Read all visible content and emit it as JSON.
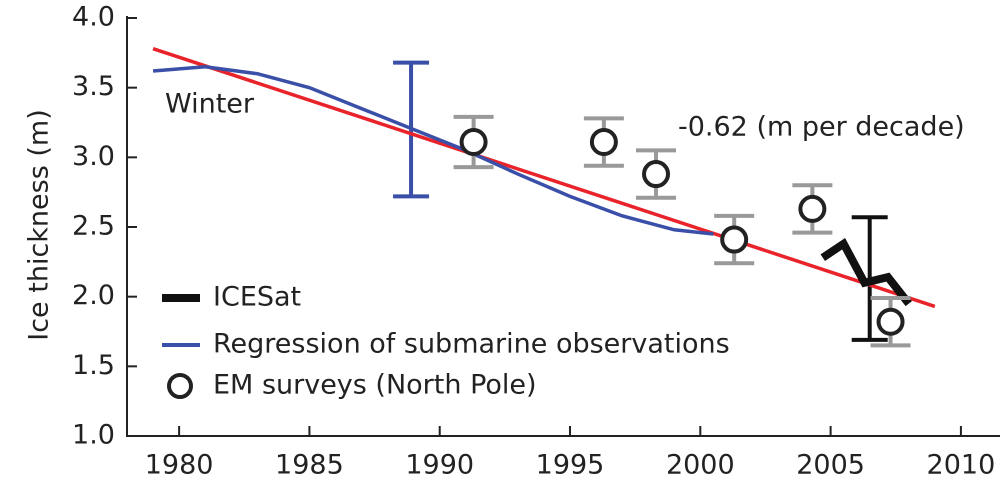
{
  "chart_data": {
    "type": "line",
    "ylabel": "Ice thickness (m)",
    "xlim": [
      1978,
      2011.5
    ],
    "xticks": [
      1980,
      1985,
      1990,
      1995,
      2000,
      2005,
      2010
    ],
    "ylim": [
      1.0,
      4.0
    ],
    "yticks": [
      {
        "value": 1,
        "label": "1.0"
      },
      1.5,
      {
        "value": 2,
        "label": "2.0"
      },
      2.5,
      {
        "value": 3,
        "label": "3.0"
      },
      3.5,
      {
        "value": 4,
        "label": "4.0"
      }
    ],
    "series": [
      {
        "name": "ICESat",
        "color": "#111111",
        "style": "line",
        "x": [
          2004.7,
          2005.5,
          2006.3,
          2007.2,
          2008.0
        ],
        "values": [
          2.28,
          2.38,
          2.1,
          2.14,
          1.95
        ]
      },
      {
        "name": "Regression of submarine observations",
        "color": "#3a4fa8",
        "style": "line",
        "x": [
          1979,
          1981,
          1983,
          1985,
          1987,
          1989,
          1991,
          1993,
          1995,
          1997,
          1999,
          2000.5
        ],
        "values": [
          3.62,
          3.65,
          3.6,
          3.5,
          3.35,
          3.2,
          3.05,
          2.88,
          2.72,
          2.58,
          2.48,
          2.45
        ]
      },
      {
        "name": "EM surveys (North Pole)",
        "color": "#222222",
        "style": "marker",
        "error_color": "#999999",
        "x": [
          1991.3,
          1996.3,
          1998.3,
          2001.3,
          2004.3,
          2007.3
        ],
        "values": [
          3.11,
          3.11,
          2.88,
          2.41,
          2.63,
          1.82
        ],
        "errors": [
          0.18,
          0.17,
          0.17,
          0.17,
          0.17,
          0.17
        ]
      }
    ],
    "error_bars": [
      {
        "x": 1988.9,
        "value": 3.2,
        "error": 0.48,
        "color": "#3a4fa8"
      },
      {
        "x": 2006.5,
        "value": 2.13,
        "error": 0.44,
        "color": "#111111"
      }
    ],
    "trend": {
      "x": [
        1979,
        2009
      ],
      "values": [
        3.78,
        1.93
      ],
      "color": "#e8232a"
    },
    "annotations": [
      "Winter",
      "-0.62 (m per decade)"
    ]
  }
}
